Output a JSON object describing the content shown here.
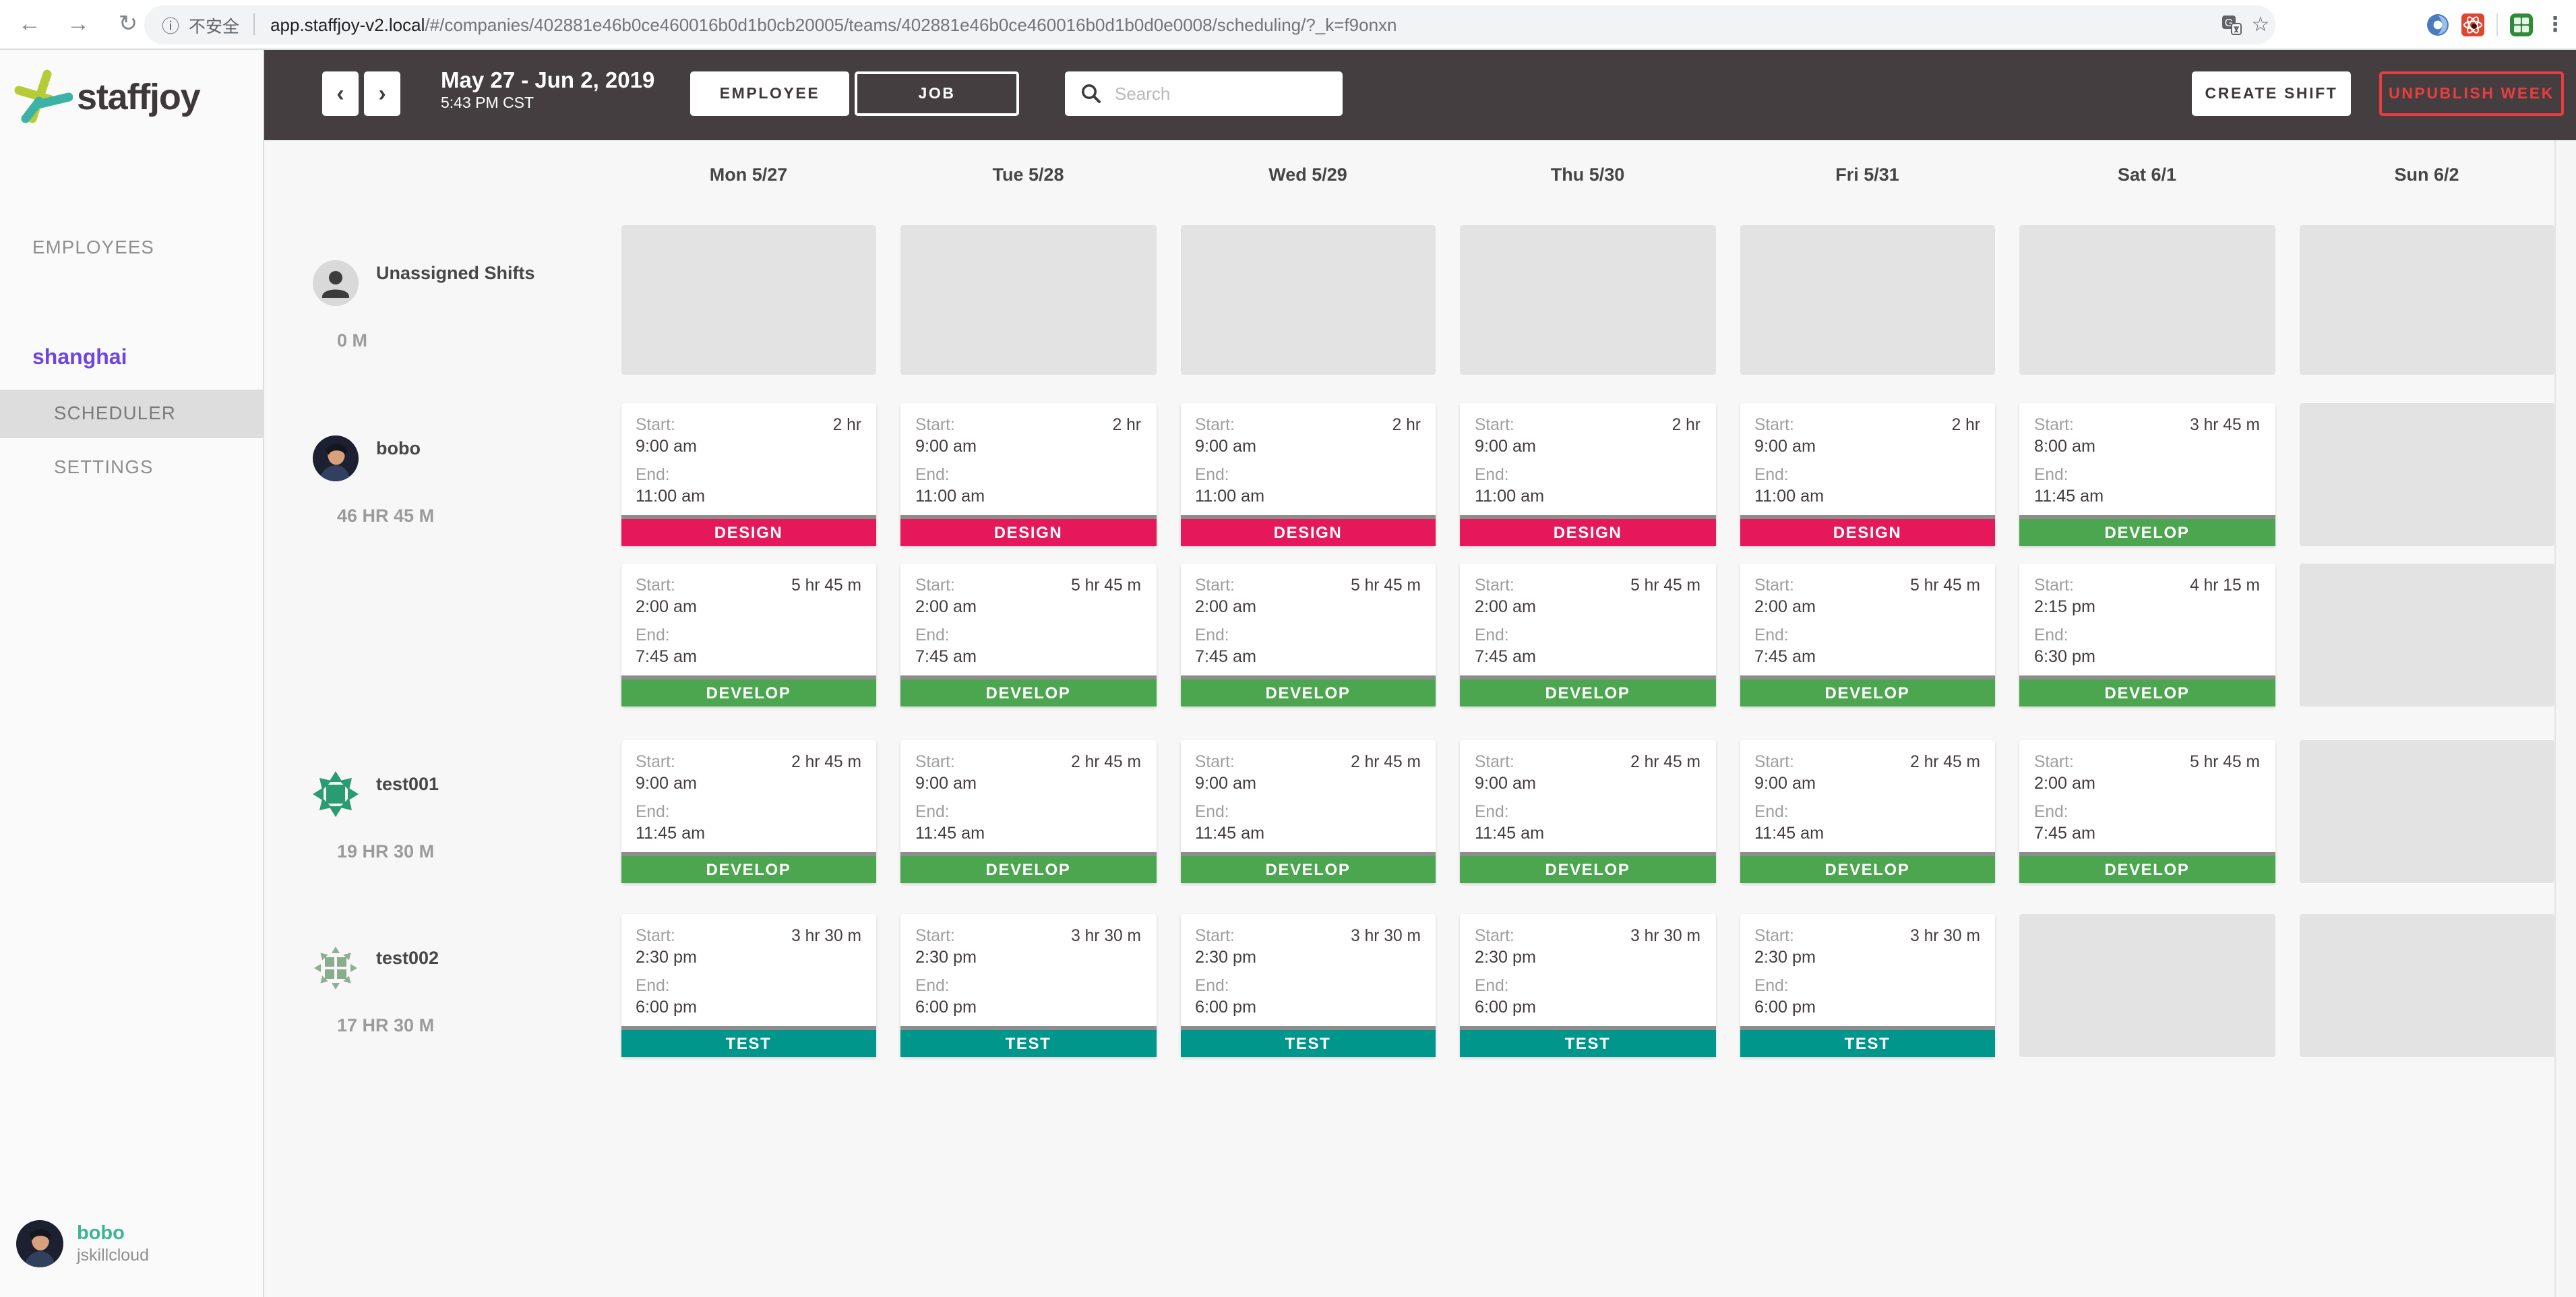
{
  "browser": {
    "security_label": "不安全",
    "url_host": "app.staffjoy-v2.local",
    "url_path": "/#/companies/402881e46b0ce460016b0d1b0cb20005/teams/402881e46b0ce460016b0d1b0d0e0008/scheduling/?_k=f9onxn"
  },
  "sidebar": {
    "brand": "staffjoy",
    "employees_label": "EMPLOYEES",
    "team_name": "shanghai",
    "scheduler_label": "SCHEDULER",
    "settings_label": "SETTINGS",
    "user": {
      "name": "bobo",
      "org": "jskillcloud"
    }
  },
  "topbar": {
    "date_range": "May 27 - Jun 2, 2019",
    "time_caption": "5:43 PM CST",
    "employee_toggle": "EMPLOYEE",
    "job_toggle": "JOB",
    "search_placeholder": "Search",
    "create_shift": "CREATE SHIFT",
    "unpublish_week": "UNPUBLISH WEEK"
  },
  "calendar": {
    "days": [
      "Mon 5/27",
      "Tue 5/28",
      "Wed 5/29",
      "Thu 5/30",
      "Fri 5/31",
      "Sat 6/1",
      "Sun 6/2"
    ],
    "shift_labels": {
      "start": "Start:",
      "end": "End:"
    },
    "job_colors": {
      "DESIGN": "#e6185c",
      "DEVELOP": "#4ba64f",
      "TEST": "#00968b"
    },
    "rows": [
      {
        "name": "Unassigned Shifts",
        "hours": "0 M",
        "avatar": "person-silhouette",
        "bands": [
          [
            null,
            null,
            null,
            null,
            null,
            null,
            null
          ]
        ]
      },
      {
        "name": "bobo",
        "hours": "46 HR 45 M",
        "avatar": "photo",
        "bands": [
          [
            {
              "job": "DESIGN",
              "start": "9:00 am",
              "end": "11:00 am",
              "duration": "2 hr"
            },
            {
              "job": "DESIGN",
              "start": "9:00 am",
              "end": "11:00 am",
              "duration": "2 hr"
            },
            {
              "job": "DESIGN",
              "start": "9:00 am",
              "end": "11:00 am",
              "duration": "2 hr"
            },
            {
              "job": "DESIGN",
              "start": "9:00 am",
              "end": "11:00 am",
              "duration": "2 hr"
            },
            {
              "job": "DESIGN",
              "start": "9:00 am",
              "end": "11:00 am",
              "duration": "2 hr"
            },
            {
              "job": "DEVELOP",
              "start": "8:00 am",
              "end": "11:45 am",
              "duration": "3 hr 45 m"
            },
            null
          ],
          [
            {
              "job": "DEVELOP",
              "start": "2:00 am",
              "end": "7:45 am",
              "duration": "5 hr 45 m"
            },
            {
              "job": "DEVELOP",
              "start": "2:00 am",
              "end": "7:45 am",
              "duration": "5 hr 45 m"
            },
            {
              "job": "DEVELOP",
              "start": "2:00 am",
              "end": "7:45 am",
              "duration": "5 hr 45 m"
            },
            {
              "job": "DEVELOP",
              "start": "2:00 am",
              "end": "7:45 am",
              "duration": "5 hr 45 m"
            },
            {
              "job": "DEVELOP",
              "start": "2:00 am",
              "end": "7:45 am",
              "duration": "5 hr 45 m"
            },
            {
              "job": "DEVELOP",
              "start": "2:15 pm",
              "end": "6:30 pm",
              "duration": "4 hr 15 m"
            },
            null
          ]
        ]
      },
      {
        "name": "test001",
        "hours": "19 HR 30 M",
        "avatar": "identicon-green",
        "bands": [
          [
            {
              "job": "DEVELOP",
              "start": "9:00 am",
              "end": "11:45 am",
              "duration": "2 hr 45 m"
            },
            {
              "job": "DEVELOP",
              "start": "9:00 am",
              "end": "11:45 am",
              "duration": "2 hr 45 m"
            },
            {
              "job": "DEVELOP",
              "start": "9:00 am",
              "end": "11:45 am",
              "duration": "2 hr 45 m"
            },
            {
              "job": "DEVELOP",
              "start": "9:00 am",
              "end": "11:45 am",
              "duration": "2 hr 45 m"
            },
            {
              "job": "DEVELOP",
              "start": "9:00 am",
              "end": "11:45 am",
              "duration": "2 hr 45 m"
            },
            {
              "job": "DEVELOP",
              "start": "2:00 am",
              "end": "7:45 am",
              "duration": "5 hr 45 m"
            },
            null
          ]
        ]
      },
      {
        "name": "test002",
        "hours": "17 HR 30 M",
        "avatar": "identicon-sage",
        "bands": [
          [
            {
              "job": "TEST",
              "start": "2:30 pm",
              "end": "6:00 pm",
              "duration": "3 hr 30 m"
            },
            {
              "job": "TEST",
              "start": "2:30 pm",
              "end": "6:00 pm",
              "duration": "3 hr 30 m"
            },
            {
              "job": "TEST",
              "start": "2:30 pm",
              "end": "6:00 pm",
              "duration": "3 hr 30 m"
            },
            {
              "job": "TEST",
              "start": "2:30 pm",
              "end": "6:00 pm",
              "duration": "3 hr 30 m"
            },
            {
              "job": "TEST",
              "start": "2:30 pm",
              "end": "6:00 pm",
              "duration": "3 hr 30 m"
            },
            null,
            null
          ]
        ]
      }
    ]
  }
}
